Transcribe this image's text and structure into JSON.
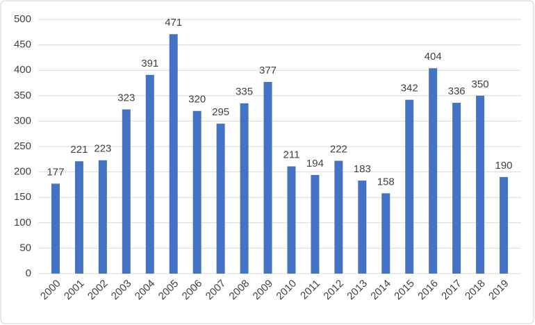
{
  "chart_data": {
    "type": "bar",
    "categories": [
      "2000",
      "2001",
      "2002",
      "2003",
      "2004",
      "2005",
      "2006",
      "2007",
      "2008",
      "2009",
      "2010",
      "2011",
      "2012",
      "2013",
      "2014",
      "2015",
      "2016",
      "2017",
      "2018",
      "2019"
    ],
    "values": [
      177,
      221,
      223,
      323,
      391,
      471,
      320,
      295,
      335,
      377,
      211,
      194,
      222,
      183,
      158,
      342,
      404,
      336,
      350,
      190
    ],
    "color": "#4472c4",
    "ylim": [
      0,
      500
    ],
    "yticks": [
      0,
      50,
      100,
      150,
      200,
      250,
      300,
      350,
      400,
      450,
      500
    ],
    "grid": true,
    "data_labels": true
  }
}
